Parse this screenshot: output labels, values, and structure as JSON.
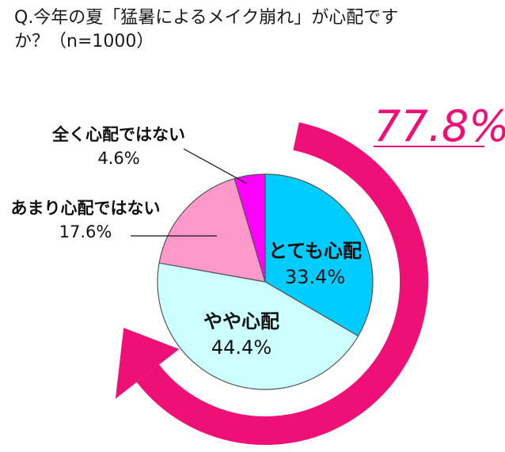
{
  "question": {
    "line1": "Q.今年の夏「猛暑によるメイク崩れ」が心配です",
    "line2": "か？（n=1000）"
  },
  "highlight": {
    "value": "77.8%",
    "color": "#ee1077"
  },
  "chart_data": {
    "type": "pie",
    "title": "Q.今年の夏「猛暑によるメイク崩れ」が心配ですか？（n=1000）",
    "categories": [
      "とても心配",
      "やや心配",
      "あまり心配ではない",
      "全く心配ではない"
    ],
    "values": [
      33.4,
      44.4,
      17.6,
      4.6
    ],
    "value_labels": [
      "33.4%",
      "44.4%",
      "17.6%",
      "4.6%"
    ],
    "colors": [
      "#00ccff",
      "#ccffff",
      "#ff99cc",
      "#ff00ff"
    ],
    "start": "12 o'clock",
    "direction": "clockwise",
    "arrow_color": "#ee1077"
  }
}
